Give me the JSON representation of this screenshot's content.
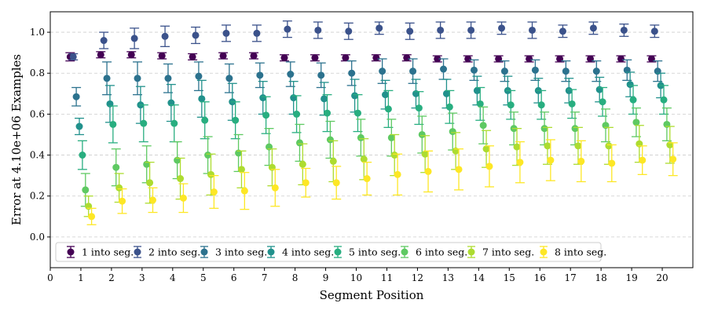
{
  "chart_data": {
    "type": "scatter",
    "xlabel": "Segment Position",
    "ylabel": "Error at 4.10e+06 Examples",
    "xlim": [
      0,
      21
    ],
    "ylim": [
      -0.15,
      1.1
    ],
    "x_ticks": [
      0,
      1,
      2,
      3,
      4,
      5,
      6,
      7,
      8,
      9,
      10,
      11,
      12,
      13,
      14,
      15,
      16,
      17,
      18,
      19,
      20
    ],
    "y_ticks": [
      "0.0",
      "0.2",
      "0.4",
      "0.6",
      "0.8",
      "1.0"
    ],
    "grid": "horizontal-dashed",
    "legend_position": "bottom-left",
    "x": [
      1,
      2,
      3,
      4,
      5,
      6,
      7,
      8,
      9,
      10,
      11,
      12,
      13,
      14,
      15,
      16,
      17,
      18,
      19,
      20
    ],
    "series": [
      {
        "name": "1 into seg.",
        "color": "#440154",
        "values": [
          0.88,
          0.89,
          0.89,
          0.885,
          0.88,
          0.885,
          0.885,
          0.875,
          0.875,
          0.875,
          0.875,
          0.875,
          0.87,
          0.87,
          0.87,
          0.87,
          0.87,
          0.87,
          0.87,
          0.87
        ],
        "errors": [
          0.02,
          0.015,
          0.015,
          0.015,
          0.015,
          0.015,
          0.015,
          0.015,
          0.015,
          0.015,
          0.015,
          0.015,
          0.015,
          0.015,
          0.015,
          0.015,
          0.015,
          0.015,
          0.015,
          0.015
        ]
      },
      {
        "name": "2 into seg.",
        "color": "#3b528b",
        "values": [
          0.88,
          0.96,
          0.97,
          0.98,
          0.985,
          0.995,
          0.995,
          1.015,
          1.01,
          1.005,
          1.02,
          1.005,
          1.01,
          1.01,
          1.02,
          1.01,
          1.005,
          1.02,
          1.01,
          1.005
        ],
        "errors": [
          0.015,
          0.04,
          0.05,
          0.05,
          0.04,
          0.04,
          0.04,
          0.04,
          0.04,
          0.04,
          0.03,
          0.04,
          0.04,
          0.04,
          0.03,
          0.04,
          0.03,
          0.03,
          0.03,
          0.03
        ]
      },
      {
        "name": "3 into seg.",
        "color": "#2c728e",
        "values": [
          0.685,
          0.775,
          0.775,
          0.775,
          0.785,
          0.775,
          0.79,
          0.795,
          0.79,
          0.8,
          0.81,
          0.81,
          0.82,
          0.815,
          0.81,
          0.815,
          0.81,
          0.81,
          0.815,
          0.81
        ],
        "errors": [
          0.045,
          0.08,
          0.08,
          0.07,
          0.07,
          0.07,
          0.06,
          0.06,
          0.06,
          0.06,
          0.06,
          0.06,
          0.05,
          0.05,
          0.05,
          0.05,
          0.05,
          0.05,
          0.05,
          0.05
        ]
      },
      {
        "name": "4 into seg.",
        "color": "#21918c",
        "values": [
          0.54,
          0.65,
          0.645,
          0.655,
          0.675,
          0.66,
          0.68,
          0.68,
          0.675,
          0.69,
          0.695,
          0.7,
          0.7,
          0.715,
          0.715,
          0.715,
          0.715,
          0.72,
          0.745,
          0.74
        ],
        "errors": [
          0.04,
          0.09,
          0.09,
          0.09,
          0.09,
          0.09,
          0.08,
          0.08,
          0.08,
          0.08,
          0.07,
          0.07,
          0.07,
          0.07,
          0.07,
          0.06,
          0.06,
          0.06,
          0.06,
          0.06
        ]
      },
      {
        "name": "5 into seg.",
        "color": "#28ae80",
        "values": [
          0.4,
          0.55,
          0.555,
          0.555,
          0.57,
          0.57,
          0.595,
          0.6,
          0.605,
          0.605,
          0.625,
          0.63,
          0.635,
          0.65,
          0.645,
          0.645,
          0.65,
          0.66,
          0.67,
          0.67
        ],
        "errors": [
          0.07,
          0.09,
          0.09,
          0.09,
          0.09,
          0.09,
          0.09,
          0.09,
          0.09,
          0.09,
          0.09,
          0.08,
          0.08,
          0.08,
          0.07,
          0.07,
          0.07,
          0.07,
          0.07,
          0.07
        ]
      },
      {
        "name": "6 into seg.",
        "color": "#5ec962",
        "values": [
          0.23,
          0.34,
          0.355,
          0.375,
          0.4,
          0.41,
          0.44,
          0.46,
          0.475,
          0.485,
          0.485,
          0.5,
          0.515,
          0.545,
          0.53,
          0.53,
          0.53,
          0.545,
          0.56,
          0.55
        ],
        "errors": [
          0.08,
          0.09,
          0.09,
          0.09,
          0.09,
          0.09,
          0.09,
          0.09,
          0.09,
          0.09,
          0.09,
          0.09,
          0.09,
          0.09,
          0.08,
          0.08,
          0.08,
          0.08,
          0.07,
          0.08
        ]
      },
      {
        "name": "7 into seg.",
        "color": "#addc30",
        "values": [
          0.15,
          0.24,
          0.265,
          0.285,
          0.305,
          0.33,
          0.34,
          0.355,
          0.37,
          0.38,
          0.4,
          0.405,
          0.42,
          0.43,
          0.44,
          0.445,
          0.445,
          0.445,
          0.455,
          0.45
        ],
        "errors": [
          0.05,
          0.07,
          0.1,
          0.1,
          0.1,
          0.09,
          0.09,
          0.1,
          0.1,
          0.1,
          0.1,
          0.09,
          0.09,
          0.09,
          0.09,
          0.09,
          0.09,
          0.09,
          0.09,
          0.09
        ]
      },
      {
        "name": "8 into seg.",
        "color": "#fde725",
        "values": [
          0.1,
          0.175,
          0.18,
          0.19,
          0.22,
          0.225,
          0.24,
          0.265,
          0.265,
          0.285,
          0.305,
          0.32,
          0.33,
          0.345,
          0.365,
          0.375,
          0.37,
          0.36,
          0.375,
          0.38
        ],
        "errors": [
          0.04,
          0.06,
          0.06,
          0.07,
          0.08,
          0.09,
          0.09,
          0.07,
          0.08,
          0.08,
          0.1,
          0.1,
          0.1,
          0.1,
          0.1,
          0.1,
          0.1,
          0.09,
          0.07,
          0.08
        ]
      }
    ]
  }
}
